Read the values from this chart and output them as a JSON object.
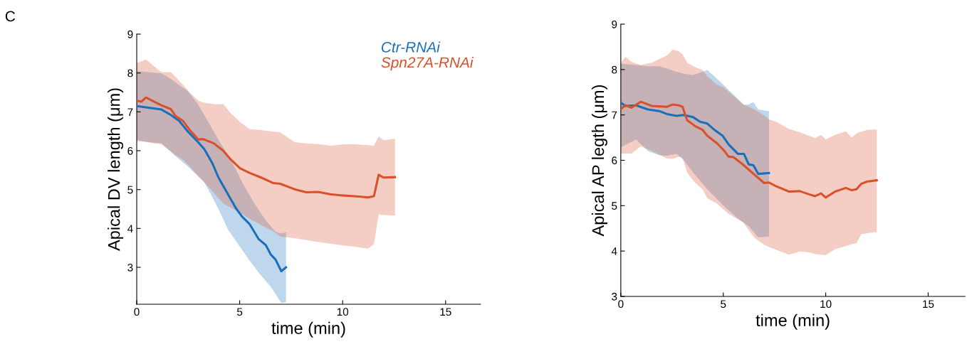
{
  "chart_data": [
    {
      "type": "line",
      "xlabel": "time (min)",
      "ylabel": "Apical DV length (μm)",
      "annotations": [
        "C"
      ],
      "xlim": [
        0,
        16.7
      ],
      "ylim": [
        2.05,
        9
      ],
      "xticks": [
        0,
        5,
        10,
        15
      ],
      "yticks": [
        3,
        4,
        5,
        6,
        7,
        8,
        9
      ],
      "legend": "top right",
      "grid": false,
      "series": [
        {
          "name": "Ctr-RNAi",
          "color": "#1a6fba",
          "x": [
            0,
            1.2,
            1.66,
            2.06,
            2.47,
            2.93,
            3.28,
            3.68,
            3.97,
            4.43,
            4.83,
            5.12,
            5.47,
            5.93,
            6.27,
            6.51,
            6.74,
            7.02,
            7.25
          ],
          "values": [
            7.15,
            7.06,
            6.92,
            6.77,
            6.5,
            6.25,
            6.04,
            5.67,
            5.31,
            4.88,
            4.51,
            4.3,
            4.12,
            3.72,
            3.57,
            3.33,
            3.2,
            2.9,
            3.0
          ],
          "upper": [
            8.05,
            7.99,
            7.85,
            7.69,
            7.54,
            7.23,
            6.92,
            6.55,
            6.28,
            5.89,
            5.5,
            5.19,
            4.86,
            4.47,
            4.21,
            4.06,
            3.91,
            3.87,
            3.9
          ],
          "lower": [
            6.25,
            6.19,
            5.97,
            5.78,
            5.6,
            5.37,
            5.19,
            4.8,
            4.5,
            3.97,
            3.67,
            3.45,
            3.18,
            2.86,
            2.65,
            2.5,
            2.31,
            2.08,
            2.1
          ]
        },
        {
          "name": "Spn27A-RNAi",
          "color": "#d9502a",
          "x": [
            0,
            0.22,
            0.45,
            0.85,
            1.2,
            1.66,
            1.89,
            2.24,
            2.58,
            2.99,
            3.22,
            3.74,
            4.2,
            4.54,
            5.01,
            5.47,
            6.04,
            6.62,
            6.97,
            7.66,
            8.24,
            8.81,
            9.39,
            9.97,
            10.54,
            11.23,
            11.52,
            11.75,
            11.98,
            12.54
          ],
          "values": [
            7.29,
            7.26,
            7.37,
            7.26,
            7.17,
            7.07,
            6.89,
            6.77,
            6.53,
            6.29,
            6.3,
            6.19,
            6.0,
            5.79,
            5.55,
            5.43,
            5.31,
            5.17,
            5.15,
            5.01,
            4.93,
            4.94,
            4.88,
            4.85,
            4.83,
            4.8,
            4.83,
            5.38,
            5.31,
            5.32
          ],
          "upper": [
            8.26,
            8.3,
            8.35,
            8.17,
            8.02,
            8.02,
            7.9,
            7.7,
            7.49,
            7.29,
            7.24,
            7.2,
            7.2,
            6.98,
            6.74,
            6.56,
            6.53,
            6.49,
            6.47,
            6.22,
            6.19,
            6.17,
            6.13,
            6.16,
            6.17,
            6.14,
            6.13,
            6.37,
            6.27,
            6.31
          ],
          "lower": [
            6.28,
            6.25,
            6.23,
            6.19,
            6.17,
            5.98,
            5.88,
            5.77,
            5.59,
            5.34,
            5.22,
            4.92,
            4.64,
            4.55,
            4.41,
            4.25,
            4.09,
            3.93,
            3.79,
            3.75,
            3.7,
            3.65,
            3.61,
            3.57,
            3.53,
            3.48,
            3.6,
            4.36,
            4.35,
            4.33
          ]
        }
      ]
    },
    {
      "type": "line",
      "xlabel": "time (min)",
      "ylabel": "Apical AP legth (μm)",
      "xlim": [
        0,
        16.8
      ],
      "ylim": [
        3,
        9
      ],
      "xticks": [
        0,
        5,
        10,
        15
      ],
      "yticks": [
        3,
        4,
        5,
        6,
        7,
        8,
        9
      ],
      "grid": false,
      "series": [
        {
          "color": "#1a6fba",
          "x": [
            0,
            0.23,
            0.75,
            1.33,
            1.91,
            2.25,
            2.72,
            3.06,
            3.53,
            3.87,
            4.22,
            4.57,
            4.97,
            5.26,
            5.72,
            6.01,
            6.24,
            6.47,
            6.71,
            7.23
          ],
          "values": [
            7.27,
            7.2,
            7.21,
            7.12,
            7.08,
            7.02,
            6.98,
            7.0,
            6.95,
            6.85,
            6.81,
            6.67,
            6.54,
            6.35,
            6.14,
            6.14,
            5.91,
            5.89,
            5.7,
            5.72
          ],
          "upper": [
            8.13,
            8.12,
            8.1,
            8.07,
            8.07,
            8.02,
            7.95,
            7.91,
            7.88,
            7.93,
            7.99,
            7.85,
            7.68,
            7.55,
            7.35,
            7.22,
            7.23,
            7.28,
            7.12,
            7.08
          ],
          "lower": [
            6.28,
            6.34,
            6.46,
            6.2,
            6.11,
            6.1,
            6.14,
            6.01,
            5.73,
            5.55,
            5.36,
            5.2,
            5.02,
            4.9,
            4.71,
            4.62,
            4.55,
            4.43,
            4.3,
            4.32
          ]
        },
        {
          "color": "#d9502a",
          "x": [
            0,
            0.23,
            0.52,
            0.98,
            1.5,
            2.25,
            2.54,
            2.83,
            3.01,
            3.24,
            3.64,
            3.99,
            4.22,
            4.68,
            5.03,
            5.26,
            5.49,
            5.95,
            6.53,
            6.99,
            7.23,
            7.57,
            8.21,
            8.73,
            9.19,
            9.48,
            9.77,
            10.0,
            10.46,
            10.98,
            11.27,
            11.5,
            11.73,
            12.02,
            12.49
          ],
          "values": [
            7.13,
            7.21,
            7.16,
            7.29,
            7.2,
            7.18,
            7.23,
            7.21,
            7.18,
            6.88,
            6.75,
            6.67,
            6.54,
            6.38,
            6.22,
            6.08,
            6.07,
            5.91,
            5.68,
            5.5,
            5.51,
            5.43,
            5.31,
            5.32,
            5.25,
            5.21,
            5.27,
            5.18,
            5.31,
            5.39,
            5.34,
            5.36,
            5.48,
            5.53,
            5.56
          ],
          "upper": [
            8.15,
            8.28,
            8.17,
            8.1,
            8.15,
            8.31,
            8.44,
            8.4,
            8.34,
            8.15,
            8.05,
            7.99,
            7.85,
            7.67,
            7.6,
            7.51,
            7.42,
            7.24,
            7.12,
            6.99,
            6.9,
            6.85,
            6.69,
            6.62,
            6.54,
            6.49,
            6.56,
            6.46,
            6.56,
            6.64,
            6.5,
            6.59,
            6.63,
            6.67,
            6.68
          ],
          "lower": [
            6.15,
            6.15,
            6.15,
            6.31,
            6.21,
            6.04,
            6.03,
            6.08,
            6.06,
            5.72,
            5.5,
            5.36,
            5.16,
            5.05,
            4.91,
            4.82,
            4.76,
            4.64,
            4.29,
            4.14,
            4.09,
            4.03,
            3.92,
            3.99,
            3.97,
            3.93,
            3.92,
            3.91,
            4.04,
            4.11,
            4.15,
            4.17,
            4.37,
            4.39,
            4.42
          ]
        }
      ]
    }
  ]
}
